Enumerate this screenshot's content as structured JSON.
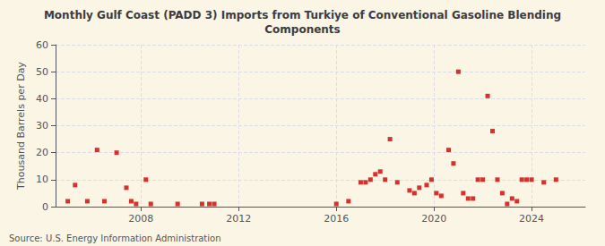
{
  "chart_data": {
    "type": "scatter",
    "title": "Monthly Gulf Coast (PADD 3) Imports from Turkiye of Conventional Gasoline Blending\nComponents",
    "ylabel": "Thousand Barrels per Day",
    "annotation": "Source: U.S. Energy Information Administration",
    "color": "#cc0000",
    "marker": "square",
    "grid": true,
    "xlim": [
      2004.5,
      2026.2
    ],
    "xticks": [
      2008,
      2012,
      2016,
      2020,
      2024
    ],
    "ylim": [
      0,
      60
    ],
    "yticks": [
      0,
      10,
      20,
      30,
      40,
      50,
      60
    ],
    "x": [
      2005.0,
      2005.3,
      2005.8,
      2006.2,
      2006.5,
      2007.0,
      2007.4,
      2007.6,
      2007.8,
      2008.2,
      2008.4,
      2009.5,
      2010.5,
      2010.8,
      2011.0,
      2016.0,
      2016.5,
      2017.0,
      2017.2,
      2017.4,
      2017.6,
      2017.8,
      2018.0,
      2018.2,
      2018.5,
      2019.0,
      2019.2,
      2019.4,
      2019.7,
      2019.9,
      2020.1,
      2020.3,
      2020.6,
      2020.8,
      2021.0,
      2021.2,
      2021.4,
      2021.6,
      2021.8,
      2022.0,
      2022.2,
      2022.4,
      2022.6,
      2022.8,
      2023.0,
      2023.2,
      2023.4,
      2023.6,
      2023.8,
      2024.0,
      2024.5,
      2025.0
    ],
    "values": [
      2.0,
      8.0,
      2.0,
      21.0,
      2.0,
      20.0,
      7.0,
      2.0,
      1.0,
      10.0,
      1.0,
      1.0,
      1.0,
      1.0,
      1.0,
      1.0,
      2.0,
      9.0,
      9.0,
      10.0,
      12.0,
      13.0,
      10.0,
      25.0,
      9.0,
      6.0,
      5.0,
      7.0,
      8.0,
      10.0,
      5.0,
      4.0,
      21.0,
      16.0,
      50.0,
      5.0,
      3.0,
      3.0,
      10.0,
      10.0,
      41.0,
      28.0,
      10.0,
      5.0,
      1.0,
      3.0,
      2.0,
      10.0,
      10.0,
      10.0,
      9.0,
      10.0
    ]
  }
}
